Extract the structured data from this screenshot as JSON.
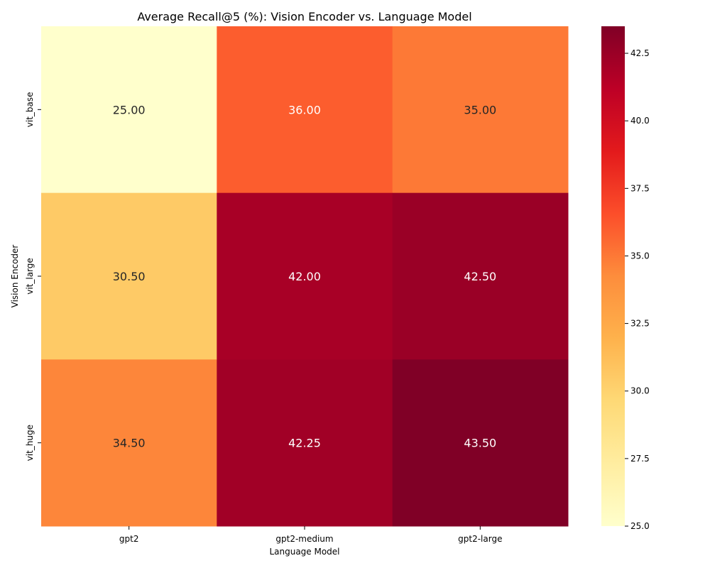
{
  "chart_data": {
    "type": "heatmap",
    "title": "Average Recall@5 (%): Vision Encoder vs. Language Model",
    "xlabel": "Language Model",
    "ylabel": "Vision Encoder",
    "x_categories": [
      "gpt2",
      "gpt2-medium",
      "gpt2-large"
    ],
    "y_categories": [
      "vit_base",
      "vit_large",
      "vit_huge"
    ],
    "values": [
      [
        25.0,
        36.0,
        35.0
      ],
      [
        30.5,
        42.0,
        42.5
      ],
      [
        34.5,
        42.25,
        43.5
      ]
    ],
    "value_labels": [
      [
        "25.00",
        "36.00",
        "35.00"
      ],
      [
        "30.50",
        "42.00",
        "42.50"
      ],
      [
        "34.50",
        "42.25",
        "43.50"
      ]
    ],
    "colormap": "YlOrRd",
    "vmin": 25.0,
    "vmax": 43.5,
    "colorbar_ticks": [
      "25.0",
      "27.5",
      "30.0",
      "32.5",
      "35.0",
      "37.5",
      "40.0",
      "42.5"
    ]
  }
}
